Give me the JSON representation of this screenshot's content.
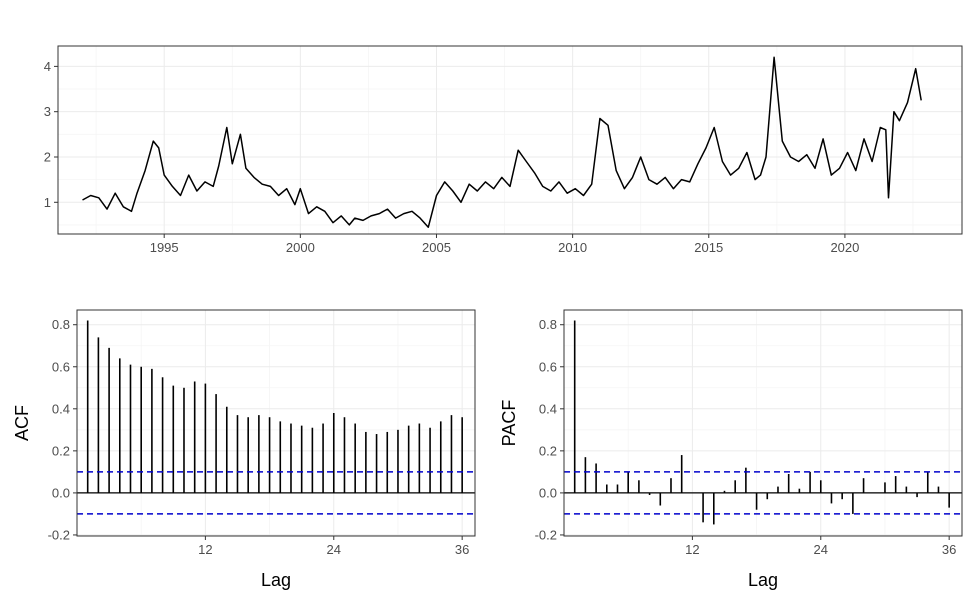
{
  "chart_data": [
    {
      "type": "line",
      "title": "",
      "xlabel": "",
      "ylabel": "",
      "xlim": [
        1991.1,
        2024.3
      ],
      "ylim": [
        0.3,
        4.45
      ],
      "xticks": [
        1995,
        2000,
        2005,
        2010,
        2015,
        2020
      ],
      "xtick_labels": [
        "1995",
        "2000",
        "2005",
        "2010",
        "2015",
        "2020"
      ],
      "yticks": [
        1,
        2,
        3,
        4
      ],
      "ytick_labels": [
        "1",
        "2",
        "3",
        "4"
      ],
      "grid": true,
      "colors": {
        "line": "#000000"
      },
      "series": [
        {
          "x": [
            1992.0,
            1992.3,
            1992.6,
            1992.9,
            1993.2,
            1993.5,
            1993.8,
            1994.0,
            1994.3,
            1994.6,
            1994.8,
            1995.0,
            1995.3,
            1995.6,
            1995.9,
            1996.2,
            1996.5,
            1996.8,
            1997.0,
            1997.3,
            1997.5,
            1997.8,
            1998.0,
            1998.3,
            1998.6,
            1998.9,
            1999.2,
            1999.5,
            1999.8,
            2000.0,
            2000.3,
            2000.6,
            2000.9,
            2001.2,
            2001.5,
            2001.8,
            2002.0,
            2002.3,
            2002.6,
            2002.9,
            2003.2,
            2003.5,
            2003.8,
            2004.1,
            2004.4,
            2004.7,
            2005.0,
            2005.3,
            2005.6,
            2005.9,
            2006.2,
            2006.5,
            2006.8,
            2007.1,
            2007.4,
            2007.7,
            2008.0,
            2008.3,
            2008.6,
            2008.9,
            2009.2,
            2009.5,
            2009.8,
            2010.1,
            2010.4,
            2010.7,
            2011.0,
            2011.3,
            2011.6,
            2011.9,
            2012.2,
            2012.5,
            2012.8,
            2013.1,
            2013.4,
            2013.7,
            2014.0,
            2014.3,
            2014.6,
            2014.9,
            2015.2,
            2015.5,
            2015.8,
            2016.1,
            2016.4,
            2016.7,
            2016.9,
            2017.1,
            2017.4,
            2017.7,
            2018.0,
            2018.3,
            2018.6,
            2018.9,
            2019.2,
            2019.5,
            2019.8,
            2020.1,
            2020.4,
            2020.7,
            2021.0,
            2021.3,
            2021.5,
            2021.6,
            2021.8,
            2022.0,
            2022.3,
            2022.6,
            2022.8
          ],
          "values": [
            1.05,
            1.15,
            1.1,
            0.85,
            1.2,
            0.9,
            0.8,
            1.2,
            1.7,
            2.35,
            2.2,
            1.6,
            1.35,
            1.15,
            1.6,
            1.25,
            1.45,
            1.35,
            1.8,
            2.65,
            1.85,
            2.5,
            1.75,
            1.55,
            1.4,
            1.35,
            1.15,
            1.3,
            0.95,
            1.3,
            0.75,
            0.9,
            0.8,
            0.55,
            0.7,
            0.5,
            0.65,
            0.6,
            0.7,
            0.75,
            0.85,
            0.65,
            0.75,
            0.8,
            0.65,
            0.45,
            1.15,
            1.45,
            1.25,
            1.0,
            1.4,
            1.25,
            1.45,
            1.3,
            1.55,
            1.35,
            2.15,
            1.9,
            1.65,
            1.35,
            1.25,
            1.45,
            1.2,
            1.3,
            1.15,
            1.4,
            2.85,
            2.7,
            1.7,
            1.3,
            1.55,
            2.0,
            1.5,
            1.4,
            1.55,
            1.3,
            1.5,
            1.45,
            1.85,
            2.2,
            2.65,
            1.9,
            1.6,
            1.75,
            2.1,
            1.5,
            1.6,
            2.0,
            4.2,
            2.35,
            2.0,
            1.9,
            2.05,
            1.75,
            2.4,
            1.6,
            1.75,
            2.1,
            1.7,
            2.4,
            1.9,
            2.65,
            2.6,
            1.1,
            3.0,
            2.8,
            3.2,
            3.95,
            3.25
          ]
        }
      ]
    },
    {
      "type": "bar",
      "title": "",
      "xlabel": "Lag",
      "ylabel": "ACF",
      "xlim": [
        0,
        37.2
      ],
      "ylim": [
        -0.205,
        0.87
      ],
      "xticks": [
        12,
        24,
        36
      ],
      "xtick_labels": [
        "12",
        "24",
        "36"
      ],
      "yticks": [
        -0.2,
        0.0,
        0.2,
        0.4,
        0.6,
        0.8
      ],
      "ytick_labels": [
        "-0.2",
        "0.0",
        "0.2",
        "0.4",
        "0.6",
        "0.8"
      ],
      "grid": true,
      "confidence_band": [
        -0.1,
        0.1
      ],
      "colors": {
        "bar": "#000000",
        "band": "#0000cc"
      },
      "x": [
        1,
        2,
        3,
        4,
        5,
        6,
        7,
        8,
        9,
        10,
        11,
        12,
        13,
        14,
        15,
        16,
        17,
        18,
        19,
        20,
        21,
        22,
        23,
        24,
        25,
        26,
        27,
        28,
        29,
        30,
        31,
        32,
        33,
        34,
        35,
        36
      ],
      "values": [
        0.82,
        0.74,
        0.69,
        0.64,
        0.61,
        0.6,
        0.59,
        0.55,
        0.51,
        0.5,
        0.53,
        0.52,
        0.47,
        0.41,
        0.37,
        0.36,
        0.37,
        0.36,
        0.34,
        0.33,
        0.32,
        0.31,
        0.33,
        0.38,
        0.36,
        0.33,
        0.29,
        0.28,
        0.29,
        0.3,
        0.32,
        0.33,
        0.31,
        0.34,
        0.37,
        0.36
      ]
    },
    {
      "type": "bar",
      "title": "",
      "xlabel": "Lag",
      "ylabel": "PACF",
      "xlim": [
        0,
        37.2
      ],
      "ylim": [
        -0.205,
        0.87
      ],
      "xticks": [
        12,
        24,
        36
      ],
      "xtick_labels": [
        "12",
        "24",
        "36"
      ],
      "yticks": [
        -0.2,
        0.0,
        0.2,
        0.4,
        0.6,
        0.8
      ],
      "ytick_labels": [
        "-0.2",
        "0.0",
        "0.2",
        "0.4",
        "0.6",
        "0.8"
      ],
      "grid": true,
      "confidence_band": [
        -0.1,
        0.1
      ],
      "colors": {
        "bar": "#000000",
        "band": "#0000cc"
      },
      "x": [
        1,
        2,
        3,
        4,
        5,
        6,
        7,
        8,
        9,
        10,
        11,
        12,
        13,
        14,
        15,
        16,
        17,
        18,
        19,
        20,
        21,
        22,
        23,
        24,
        25,
        26,
        27,
        28,
        29,
        30,
        31,
        32,
        33,
        34,
        35,
        36
      ],
      "values": [
        0.82,
        0.17,
        0.14,
        0.04,
        0.04,
        0.1,
        0.06,
        -0.01,
        -0.06,
        0.07,
        0.18,
        0.0,
        -0.14,
        -0.15,
        0.01,
        0.06,
        0.12,
        -0.08,
        -0.03,
        0.03,
        0.09,
        0.02,
        0.1,
        0.06,
        -0.05,
        -0.03,
        -0.1,
        0.07,
        0.0,
        0.05,
        0.08,
        0.03,
        -0.02,
        0.1,
        0.03,
        -0.07
      ]
    }
  ]
}
